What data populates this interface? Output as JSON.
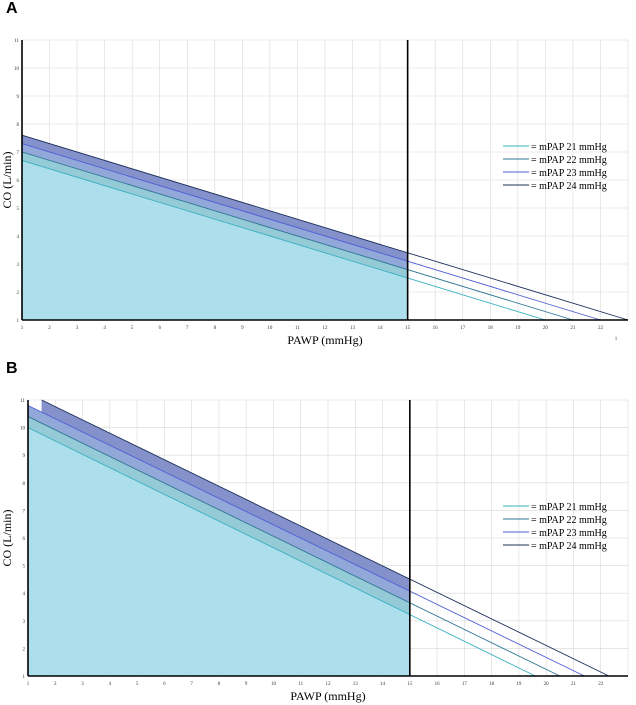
{
  "chart_data": [
    {
      "panel": "A",
      "type": "line",
      "xlabel": "PAWP (mmHg)",
      "ylabel": "CO (L/min)",
      "xlim": [
        1,
        23
      ],
      "ylim": [
        1,
        11
      ],
      "x_ticks": [
        "1",
        "2",
        "3",
        "4",
        "5",
        "6",
        "7",
        "8",
        "9",
        "10",
        "11",
        "12",
        "13",
        "14",
        "15",
        "16",
        "17",
        "18",
        "19",
        "20",
        "21",
        "22"
      ],
      "y_ticks": [
        "1",
        "2",
        "3",
        "4",
        "5",
        "6",
        "7",
        "8",
        "9",
        "10",
        "11"
      ],
      "extra_label": "1",
      "grid": true,
      "legend_position": "right",
      "vertical_line_x": 15,
      "series": [
        {
          "name": "= mPAP 21 mmHg",
          "color": "#39b0c2",
          "x": [
            1,
            20
          ],
          "y": [
            6.7,
            1.0
          ]
        },
        {
          "name": "= mPAP 22 mmHg",
          "color": "#2e7796",
          "x": [
            1,
            21
          ],
          "y": [
            7.0,
            1.0
          ]
        },
        {
          "name": "= mPAP 23 mmHg",
          "color": "#4f5fd6",
          "x": [
            1,
            22
          ],
          "y": [
            7.3,
            1.0
          ]
        },
        {
          "name": "= mPAP 24 mmHg",
          "color": "#1c2f5a",
          "x": [
            1,
            23
          ],
          "y": [
            7.6,
            1.0
          ]
        }
      ]
    },
    {
      "panel": "B",
      "type": "line",
      "xlabel": "PAWP (mmHg)",
      "ylabel": "CO (L/min)",
      "xlim": [
        1,
        23
      ],
      "ylim": [
        1,
        11
      ],
      "x_ticks": [
        "1",
        "2",
        "3",
        "4",
        "5",
        "6",
        "7",
        "8",
        "9",
        "10",
        "11",
        "12",
        "13",
        "14",
        "15",
        "16",
        "17",
        "18",
        "19",
        "20",
        "21",
        "22"
      ],
      "y_ticks": [
        "1",
        "2",
        "3",
        "4",
        "5",
        "6",
        "7",
        "8",
        "9",
        "10",
        "11"
      ],
      "grid": true,
      "legend_position": "right",
      "vertical_line_x": 15,
      "series": [
        {
          "name": "= mPAP 21 mmHg",
          "color": "#39b0c2",
          "x": [
            1,
            19.6
          ],
          "y": [
            10.0,
            1.0
          ]
        },
        {
          "name": "= mPAP 22 mmHg",
          "color": "#2e7796",
          "x": [
            1,
            20.5
          ],
          "y": [
            10.4,
            1.0
          ]
        },
        {
          "name": "= mPAP 23 mmHg",
          "color": "#4f5fd6",
          "x": [
            1,
            21.4
          ],
          "y": [
            10.8,
            1.0
          ]
        },
        {
          "name": "= mPAP 24 mmHg",
          "color": "#1c2f5a",
          "x": [
            1.5,
            22.3
          ],
          "y": [
            11.0,
            1.0
          ]
        }
      ]
    }
  ]
}
